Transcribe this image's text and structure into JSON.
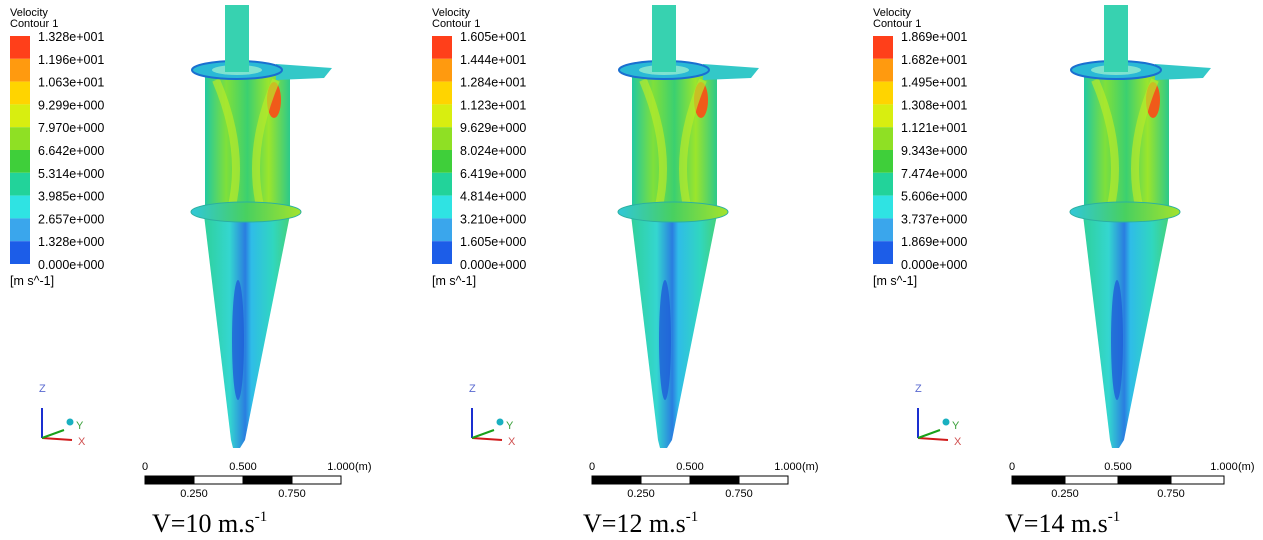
{
  "panels": [
    {
      "legend": {
        "title": "Velocity",
        "subtitle": "Contour 1",
        "labels": [
          "1.328e+001",
          "1.196e+001",
          "1.063e+001",
          "9.299e+000",
          "7.970e+000",
          "6.642e+000",
          "5.314e+000",
          "3.985e+000",
          "2.657e+000",
          "1.328e+000",
          "0.000e+000"
        ],
        "unit": "[m s^-1]"
      },
      "axes": {
        "z": "Z",
        "y": "Y",
        "x": "X"
      },
      "scale": {
        "top": [
          "0",
          "0.500",
          "1.000"
        ],
        "unit": "(m)",
        "bottom": [
          "0.250",
          "0.750"
        ]
      },
      "caption": {
        "text": "V=10 m.s",
        "sup": "-1"
      }
    },
    {
      "legend": {
        "title": "Velocity",
        "subtitle": "Contour 1",
        "labels": [
          "1.605e+001",
          "1.444e+001",
          "1.284e+001",
          "1.123e+001",
          "9.629e+000",
          "8.024e+000",
          "6.419e+000",
          "4.814e+000",
          "3.210e+000",
          "1.605e+000",
          "0.000e+000"
        ],
        "unit": "[m s^-1]"
      },
      "axes": {
        "z": "Z",
        "y": "Y",
        "x": "X"
      },
      "scale": {
        "top": [
          "0",
          "0.500",
          "1.000"
        ],
        "unit": "(m)",
        "bottom": [
          "0.250",
          "0.750"
        ]
      },
      "caption": {
        "text": "V=12 m.s",
        "sup": "-1"
      }
    },
    {
      "legend": {
        "title": "Velocity",
        "subtitle": "Contour 1",
        "labels": [
          "1.869e+001",
          "1.682e+001",
          "1.495e+001",
          "1.308e+001",
          "1.121e+001",
          "9.343e+000",
          "7.474e+000",
          "5.606e+000",
          "3.737e+000",
          "1.869e+000",
          "0.000e+000"
        ],
        "unit": "[m s^-1]"
      },
      "axes": {
        "z": "Z",
        "y": "Y",
        "x": "X"
      },
      "scale": {
        "top": [
          "0",
          "0.500",
          "1.000"
        ],
        "unit": "(m)",
        "bottom": [
          "0.250",
          "0.750"
        ]
      },
      "caption": {
        "text": "V=14 m.s",
        "sup": "-1"
      }
    }
  ]
}
